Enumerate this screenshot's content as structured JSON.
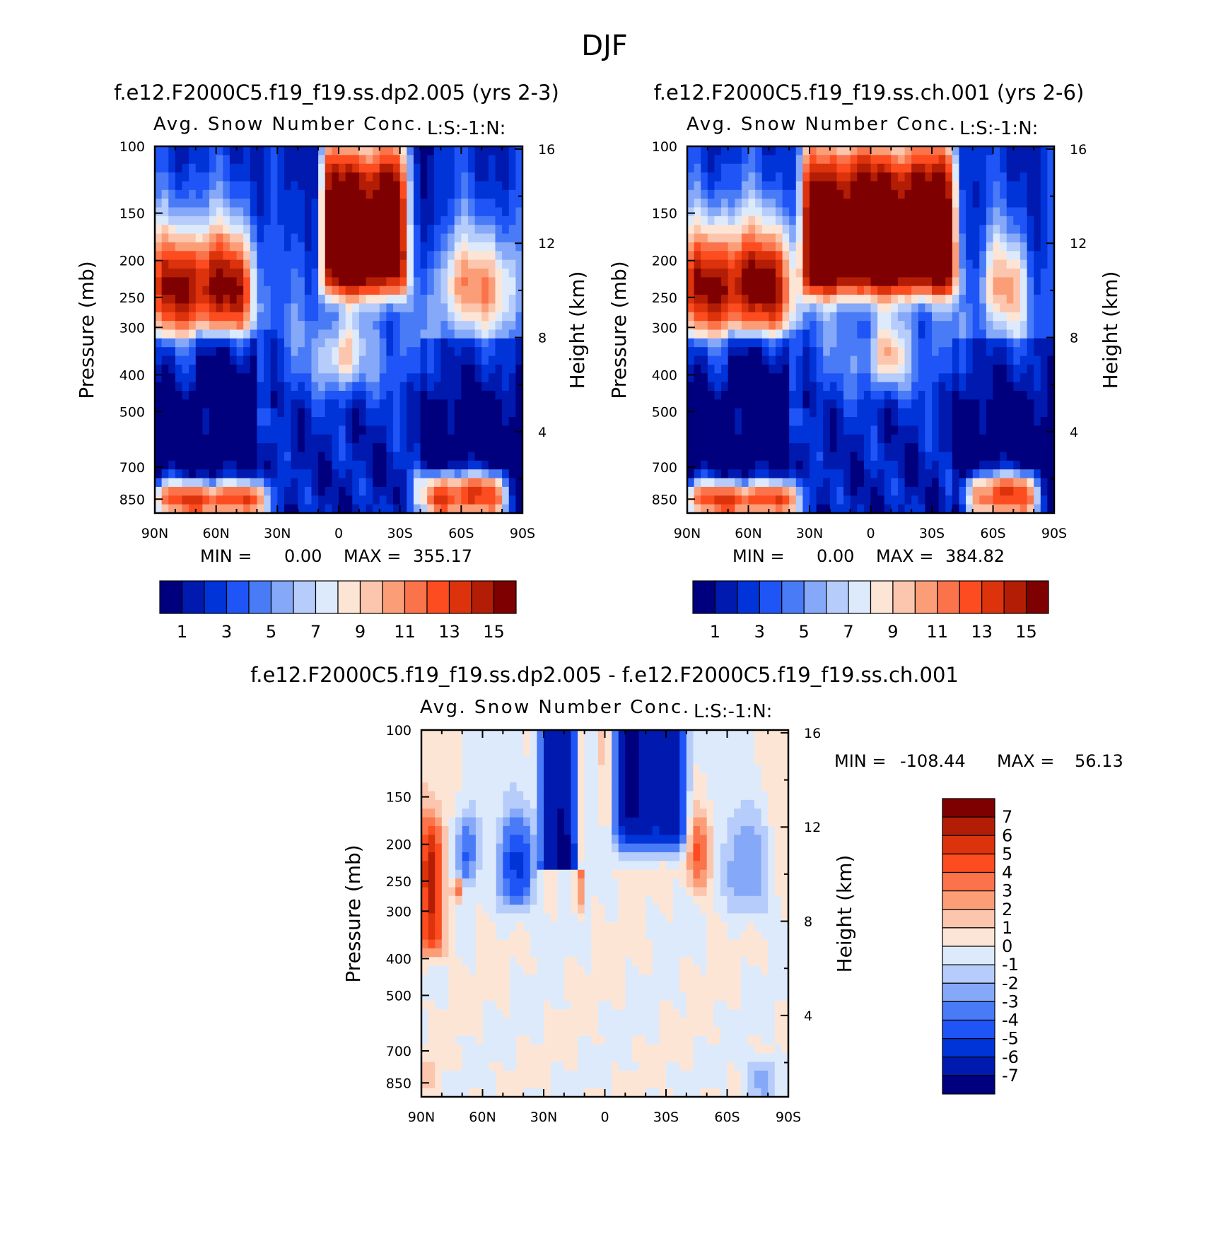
{
  "figure": {
    "title": "DJF"
  },
  "palette": {
    "sequential": [
      "#00007e",
      "#0019af",
      "#0034d8",
      "#1f54f6",
      "#4a7bf7",
      "#85a8f8",
      "#b6ccfa",
      "#ddeafb",
      "#fde5d6",
      "#fcc6ae",
      "#fb9e78",
      "#fb734b",
      "#fc4c20",
      "#dc330c",
      "#b41d05",
      "#7f0000"
    ],
    "diverging": [
      "#00007e",
      "#0019af",
      "#0034d8",
      "#1f54f6",
      "#4a7bf7",
      "#85a8f8",
      "#b6ccfa",
      "#ddeafb",
      "#fde5d6",
      "#fcc6ae",
      "#fb9e78",
      "#fb734b",
      "#fc4c20",
      "#dc330c",
      "#b41d05",
      "#7f0000"
    ]
  },
  "chart_data": [
    {
      "type": "heatmap",
      "panel_title": "f.e12.F2000C5.f19_f19.ss.dp2.005 (yrs 2-3)",
      "subtitle": "Avg. Snow Number Conc.",
      "units_label": "L:S:-1:N:",
      "xlabel": "",
      "ylabel": "Pressure (mb)",
      "ylabel_right": "Height (km)",
      "x_ticks": [
        "90N",
        "60N",
        "30N",
        "0",
        "30S",
        "60S",
        "90S"
      ],
      "x_range": [
        90,
        -90
      ],
      "y_ticks": [
        "100",
        "150",
        "200",
        "250",
        "300",
        "400",
        "500",
        "700",
        "850"
      ],
      "y_range": [
        100,
        925
      ],
      "y2_ticks": [
        "16",
        "12",
        "8",
        "4"
      ],
      "min_label": "MIN =",
      "min_value": "0.00",
      "max_label": "MAX =",
      "max_value": "355.17",
      "colorbar": {
        "orientation": "horizontal",
        "levels": 16,
        "labels": [
          "1",
          "3",
          "5",
          "7",
          "9",
          "11",
          "13",
          "15"
        ]
      },
      "features": [
        {
          "kind": "high",
          "lat": [
            8,
            -33
          ],
          "p": [
            100,
            240
          ],
          "note": "tropical upper-tropospheric maximum"
        },
        {
          "kind": "high",
          "lat": [
            90,
            42
          ],
          "p": [
            175,
            290
          ],
          "note": "NH upper band"
        },
        {
          "kind": "high",
          "lat": [
            90,
            38
          ],
          "p": [
            780,
            925
          ],
          "note": "NH low-level"
        },
        {
          "kind": "high",
          "lat": [
            -40,
            -80
          ],
          "p": [
            740,
            925
          ],
          "note": "SH low-level"
        },
        {
          "kind": "high",
          "lat": [
            -50,
            -85
          ],
          "p": [
            180,
            270
          ],
          "note": "SH upper band"
        }
      ]
    },
    {
      "type": "heatmap",
      "panel_title": "f.e12.F2000C5.f19_f19.ss.ch.001 (yrs 2-6)",
      "subtitle": "Avg. Snow Number Conc.",
      "units_label": "L:S:-1:N:",
      "xlabel": "",
      "ylabel": "Pressure (mb)",
      "ylabel_right": "Height (km)",
      "x_ticks": [
        "90N",
        "60N",
        "30N",
        "0",
        "30S",
        "60S",
        "90S"
      ],
      "x_range": [
        90,
        -90
      ],
      "y_ticks": [
        "100",
        "150",
        "200",
        "250",
        "300",
        "400",
        "500",
        "700",
        "850"
      ],
      "y_range": [
        100,
        925
      ],
      "y2_ticks": [
        "16",
        "12",
        "8",
        "4"
      ],
      "min_label": "MIN =",
      "min_value": "0.00",
      "max_label": "MAX =",
      "max_value": "384.82",
      "colorbar": {
        "orientation": "horizontal",
        "levels": 16,
        "labels": [
          "1",
          "3",
          "5",
          "7",
          "9",
          "11",
          "13",
          "15"
        ]
      },
      "features": [
        {
          "kind": "high",
          "lat": [
            33,
            -42
          ],
          "p": [
            100,
            240
          ],
          "note": "tropical upper-tropospheric maximum"
        },
        {
          "kind": "high",
          "lat": [
            90,
            38
          ],
          "p": [
            170,
            290
          ],
          "note": "NH upper band"
        },
        {
          "kind": "high",
          "lat": [
            90,
            38
          ],
          "p": [
            780,
            925
          ],
          "note": "NH low-level"
        },
        {
          "kind": "high",
          "lat": [
            -48,
            -82
          ],
          "p": [
            740,
            925
          ],
          "note": "SH low-level"
        },
        {
          "kind": "high",
          "lat": [
            -55,
            -75
          ],
          "p": [
            180,
            250
          ],
          "note": "SH upper band"
        }
      ]
    },
    {
      "type": "heatmap",
      "panel_title": "f.e12.F2000C5.f19_f19.ss.dp2.005 - f.e12.F2000C5.f19_f19.ss.ch.001",
      "subtitle": "Avg. Snow Number Conc.",
      "units_label": "L:S:-1:N:",
      "xlabel": "",
      "ylabel": "Pressure (mb)",
      "ylabel_right": "Height (km)",
      "x_ticks": [
        "90N",
        "60N",
        "30N",
        "0",
        "30S",
        "60S",
        "90S"
      ],
      "x_range": [
        90,
        -90
      ],
      "y_ticks": [
        "100",
        "150",
        "200",
        "250",
        "300",
        "400",
        "500",
        "700",
        "850"
      ],
      "y_range": [
        100,
        925
      ],
      "y2_ticks": [
        "16",
        "12",
        "8",
        "4"
      ],
      "min_label": "MIN =",
      "min_value": "-108.44",
      "max_label": "MAX =",
      "max_value": "56.13",
      "colorbar": {
        "orientation": "vertical",
        "levels": 16,
        "labels": [
          "7",
          "6",
          "5",
          "4",
          "3",
          "2",
          "1",
          "0",
          "-1",
          "-2",
          "-3",
          "-4",
          "-5",
          "-6",
          "-7"
        ]
      },
      "features": [
        {
          "kind": "low",
          "lat": [
            32,
            12
          ],
          "p": [
            100,
            230
          ],
          "note": "large negative (NH subtropics)"
        },
        {
          "kind": "low",
          "lat": [
            -5,
            -40
          ],
          "p": [
            100,
            200
          ],
          "note": "large negative (SH subtropics)"
        },
        {
          "kind": "low",
          "lat": [
            50,
            36
          ],
          "p": [
            175,
            290
          ],
          "note": "negative core"
        },
        {
          "kind": "high",
          "lat": [
            88,
            80
          ],
          "p": [
            175,
            400
          ],
          "note": "positive near pole"
        },
        {
          "kind": "high",
          "lat": [
            -42,
            -52
          ],
          "p": [
            175,
            250
          ],
          "note": "positive SH"
        }
      ]
    }
  ]
}
